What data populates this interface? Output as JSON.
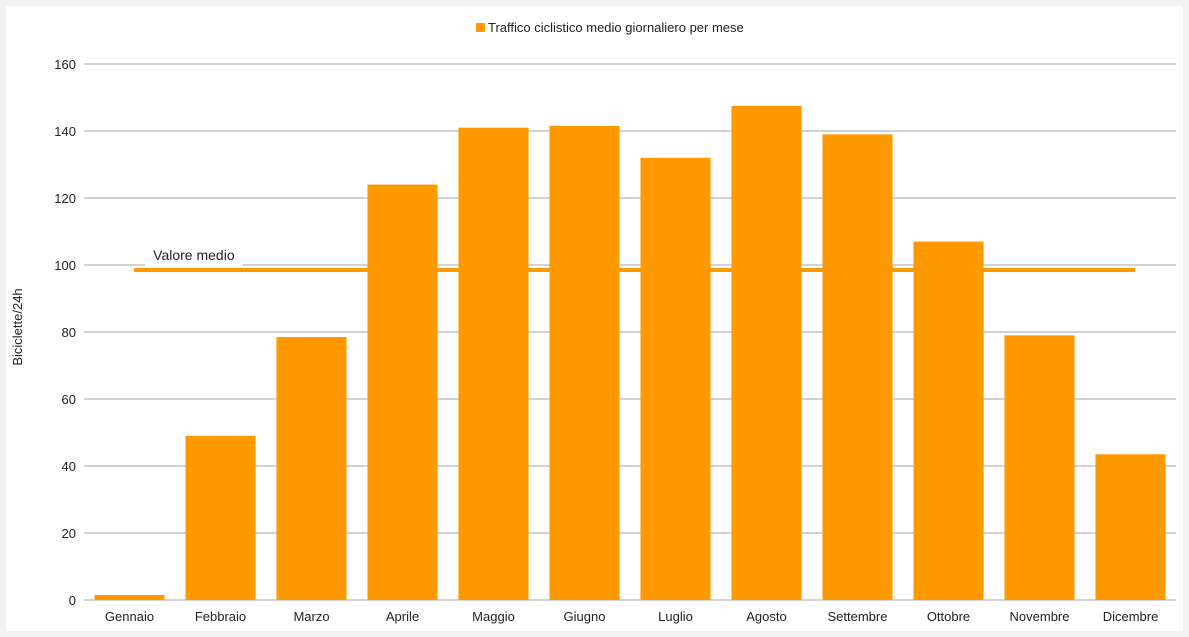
{
  "chart_data": {
    "type": "bar",
    "title": "",
    "xlabel": "",
    "ylabel": "Biciclette/24h",
    "ylim": [
      0,
      160
    ],
    "yticks": [
      0,
      20,
      40,
      60,
      80,
      100,
      120,
      140,
      160
    ],
    "grid": true,
    "legend_position": "top-center",
    "categories": [
      "Gennaio",
      "Febbraio",
      "Marzo",
      "Aprile",
      "Maggio",
      "Giugno",
      "Luglio",
      "Agosto",
      "Settembre",
      "Ottobre",
      "Novembre",
      "Dicembre"
    ],
    "series": [
      {
        "name": "Traffico ciclistico medio giornaliero per mese",
        "color": "#ff9900",
        "values": [
          1.5,
          49,
          78.5,
          124,
          141,
          141.5,
          132,
          147.5,
          139,
          107,
          79,
          43.5
        ]
      }
    ],
    "reference_line": {
      "label": "Valore medio",
      "value": 98.5,
      "color": "#ff9900"
    }
  }
}
